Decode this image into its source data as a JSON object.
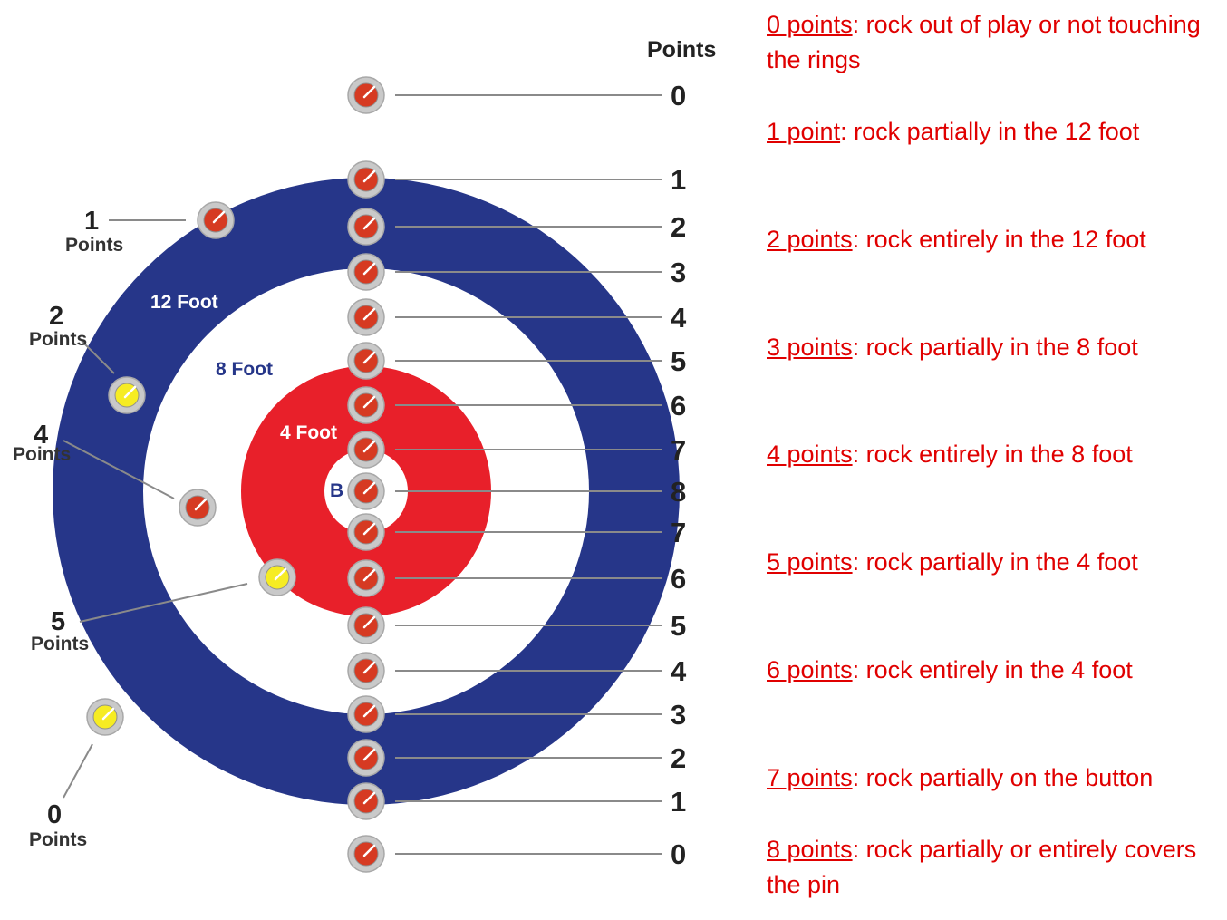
{
  "colors": {
    "twelve_foot": "#263689",
    "four_foot": "#e8202a",
    "rock_red": "#d63a22",
    "rock_yellow": "#f6ec22",
    "rock_rim": "#c9c9c9",
    "line": "#8a8a8a",
    "legend_text": "#e00000"
  },
  "diagram": {
    "header": "Points",
    "ring_labels": {
      "twelve_foot": "12 Foot",
      "eight_foot": "8 Foot",
      "four_foot": "4 Foot",
      "button": "B"
    },
    "column_scores": [
      "0",
      "1",
      "2",
      "3",
      "4",
      "5",
      "6",
      "7",
      "8",
      "7",
      "6",
      "5",
      "4",
      "3",
      "2",
      "1",
      "0"
    ],
    "side_examples": [
      {
        "value": "1",
        "word": "Points",
        "rock": "red"
      },
      {
        "value": "2",
        "word": "Points",
        "rock": "yellow"
      },
      {
        "value": "4",
        "word": "Points",
        "rock": "red"
      },
      {
        "value": "5",
        "word": "Points",
        "rock": "yellow"
      },
      {
        "value": "0",
        "word": "Points",
        "rock": "yellow"
      }
    ]
  },
  "legend": [
    {
      "term": "0 points",
      "text": ": rock out of play or not touching the rings"
    },
    {
      "term": "1 point",
      "text": ": rock partially in the 12 foot"
    },
    {
      "term": "2 points",
      "text": ": rock entirely in the 12 foot"
    },
    {
      "term": "3 points",
      "text": ": rock partially in the 8 foot"
    },
    {
      "term": "4 points",
      "text": ": rock entirely in the 8 foot"
    },
    {
      "term": "5 points",
      "text": ": rock partially in the 4 foot"
    },
    {
      "term": "6 points",
      "text": ": rock entirely in the 4 foot"
    },
    {
      "term": "7 points",
      "text": ": rock partially on the button"
    },
    {
      "term": "8 points",
      "text": ": rock partially or entirely covers the pin"
    }
  ]
}
